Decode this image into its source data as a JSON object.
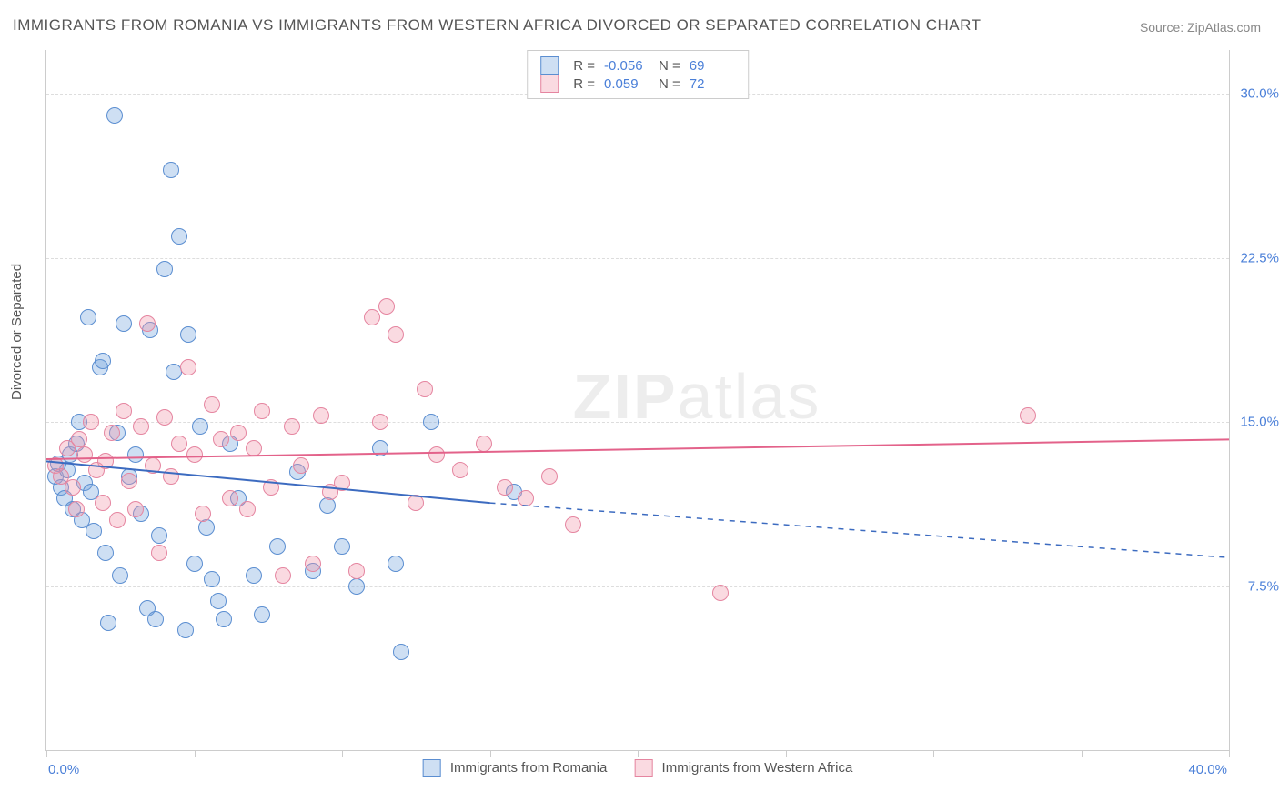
{
  "title": "IMMIGRANTS FROM ROMANIA VS IMMIGRANTS FROM WESTERN AFRICA DIVORCED OR SEPARATED CORRELATION CHART",
  "source": "Source: ZipAtlas.com",
  "ylabel": "Divorced or Separated",
  "watermark_bold": "ZIP",
  "watermark_light": "atlas",
  "chart": {
    "type": "scatter-correlation",
    "background_color": "#ffffff",
    "grid_color": "#dddddd",
    "border_color": "#cccccc",
    "xlim": [
      0,
      40
    ],
    "ylim": [
      0,
      32
    ],
    "yticks": [
      {
        "value": 7.5,
        "label": "7.5%"
      },
      {
        "value": 15.0,
        "label": "15.0%"
      },
      {
        "value": 22.5,
        "label": "22.5%"
      },
      {
        "value": 30.0,
        "label": "30.0%"
      }
    ],
    "xtick_positions": [
      0,
      5,
      10,
      15,
      20,
      25,
      30,
      35,
      40
    ],
    "xaxis_left_label": "0.0%",
    "xaxis_right_label": "40.0%",
    "marker_radius": 8,
    "marker_stroke_width": 1.5,
    "series": [
      {
        "name": "Immigrants from Romania",
        "fill": "rgba(114,162,222,0.35)",
        "stroke": "#5b8ed1",
        "R": "-0.056",
        "N": "69",
        "regression": {
          "x1": 0,
          "y1": 13.2,
          "x2": 15,
          "y2": 11.3,
          "dash_x2": 40,
          "dash_y2": 8.8,
          "color": "#3c6bc0",
          "width": 2
        },
        "points": [
          [
            0.3,
            12.5
          ],
          [
            0.4,
            13.1
          ],
          [
            0.5,
            12.0
          ],
          [
            0.6,
            11.5
          ],
          [
            0.7,
            12.8
          ],
          [
            0.8,
            13.5
          ],
          [
            0.9,
            11.0
          ],
          [
            1.0,
            14.0
          ],
          [
            1.1,
            15.0
          ],
          [
            1.2,
            10.5
          ],
          [
            1.3,
            12.2
          ],
          [
            1.4,
            19.8
          ],
          [
            1.5,
            11.8
          ],
          [
            1.6,
            10.0
          ],
          [
            1.8,
            17.5
          ],
          [
            1.9,
            17.8
          ],
          [
            2.0,
            9.0
          ],
          [
            2.1,
            5.8
          ],
          [
            2.3,
            29.0
          ],
          [
            2.4,
            14.5
          ],
          [
            2.5,
            8.0
          ],
          [
            2.6,
            19.5
          ],
          [
            2.8,
            12.5
          ],
          [
            3.0,
            13.5
          ],
          [
            3.2,
            10.8
          ],
          [
            3.4,
            6.5
          ],
          [
            3.5,
            19.2
          ],
          [
            3.7,
            6.0
          ],
          [
            3.8,
            9.8
          ],
          [
            4.0,
            22.0
          ],
          [
            4.2,
            26.5
          ],
          [
            4.3,
            17.3
          ],
          [
            4.5,
            23.5
          ],
          [
            4.7,
            5.5
          ],
          [
            4.8,
            19.0
          ],
          [
            5.0,
            8.5
          ],
          [
            5.2,
            14.8
          ],
          [
            5.4,
            10.2
          ],
          [
            5.6,
            7.8
          ],
          [
            5.8,
            6.8
          ],
          [
            6.0,
            6.0
          ],
          [
            6.2,
            14.0
          ],
          [
            6.5,
            11.5
          ],
          [
            7.0,
            8.0
          ],
          [
            7.3,
            6.2
          ],
          [
            7.8,
            9.3
          ],
          [
            8.5,
            12.7
          ],
          [
            9.0,
            8.2
          ],
          [
            9.5,
            11.2
          ],
          [
            10.0,
            9.3
          ],
          [
            10.5,
            7.5
          ],
          [
            11.3,
            13.8
          ],
          [
            11.8,
            8.5
          ],
          [
            12.0,
            4.5
          ],
          [
            13.0,
            15.0
          ],
          [
            15.8,
            11.8
          ]
        ]
      },
      {
        "name": "Immigrants from Western Africa",
        "fill": "rgba(240,150,170,0.35)",
        "stroke": "#e585a0",
        "R": "0.059",
        "N": "72",
        "regression": {
          "x1": 0,
          "y1": 13.3,
          "x2": 40,
          "y2": 14.2,
          "dash_x2": null,
          "dash_y2": null,
          "color": "#e3628a",
          "width": 2
        },
        "points": [
          [
            0.3,
            13.0
          ],
          [
            0.5,
            12.5
          ],
          [
            0.7,
            13.8
          ],
          [
            0.9,
            12.0
          ],
          [
            1.0,
            11.0
          ],
          [
            1.1,
            14.2
          ],
          [
            1.3,
            13.5
          ],
          [
            1.5,
            15.0
          ],
          [
            1.7,
            12.8
          ],
          [
            1.9,
            11.3
          ],
          [
            2.0,
            13.2
          ],
          [
            2.2,
            14.5
          ],
          [
            2.4,
            10.5
          ],
          [
            2.6,
            15.5
          ],
          [
            2.8,
            12.3
          ],
          [
            3.0,
            11.0
          ],
          [
            3.2,
            14.8
          ],
          [
            3.4,
            19.5
          ],
          [
            3.6,
            13.0
          ],
          [
            3.8,
            9.0
          ],
          [
            4.0,
            15.2
          ],
          [
            4.2,
            12.5
          ],
          [
            4.5,
            14.0
          ],
          [
            4.8,
            17.5
          ],
          [
            5.0,
            13.5
          ],
          [
            5.3,
            10.8
          ],
          [
            5.6,
            15.8
          ],
          [
            5.9,
            14.2
          ],
          [
            6.2,
            11.5
          ],
          [
            6.5,
            14.5
          ],
          [
            6.8,
            11.0
          ],
          [
            7.0,
            13.8
          ],
          [
            7.3,
            15.5
          ],
          [
            7.6,
            12.0
          ],
          [
            8.0,
            8.0
          ],
          [
            8.3,
            14.8
          ],
          [
            8.6,
            13.0
          ],
          [
            9.0,
            8.5
          ],
          [
            9.3,
            15.3
          ],
          [
            9.6,
            11.8
          ],
          [
            10.0,
            12.2
          ],
          [
            10.5,
            8.2
          ],
          [
            11.0,
            19.8
          ],
          [
            11.3,
            15.0
          ],
          [
            11.5,
            20.3
          ],
          [
            11.8,
            19.0
          ],
          [
            12.5,
            11.3
          ],
          [
            12.8,
            16.5
          ],
          [
            13.2,
            13.5
          ],
          [
            14.0,
            12.8
          ],
          [
            14.8,
            14.0
          ],
          [
            15.5,
            12.0
          ],
          [
            16.2,
            11.5
          ],
          [
            17.0,
            12.5
          ],
          [
            17.8,
            10.3
          ],
          [
            22.8,
            7.2
          ],
          [
            33.2,
            15.3
          ]
        ]
      }
    ]
  },
  "colors": {
    "tick_text": "#4a7fd8"
  }
}
